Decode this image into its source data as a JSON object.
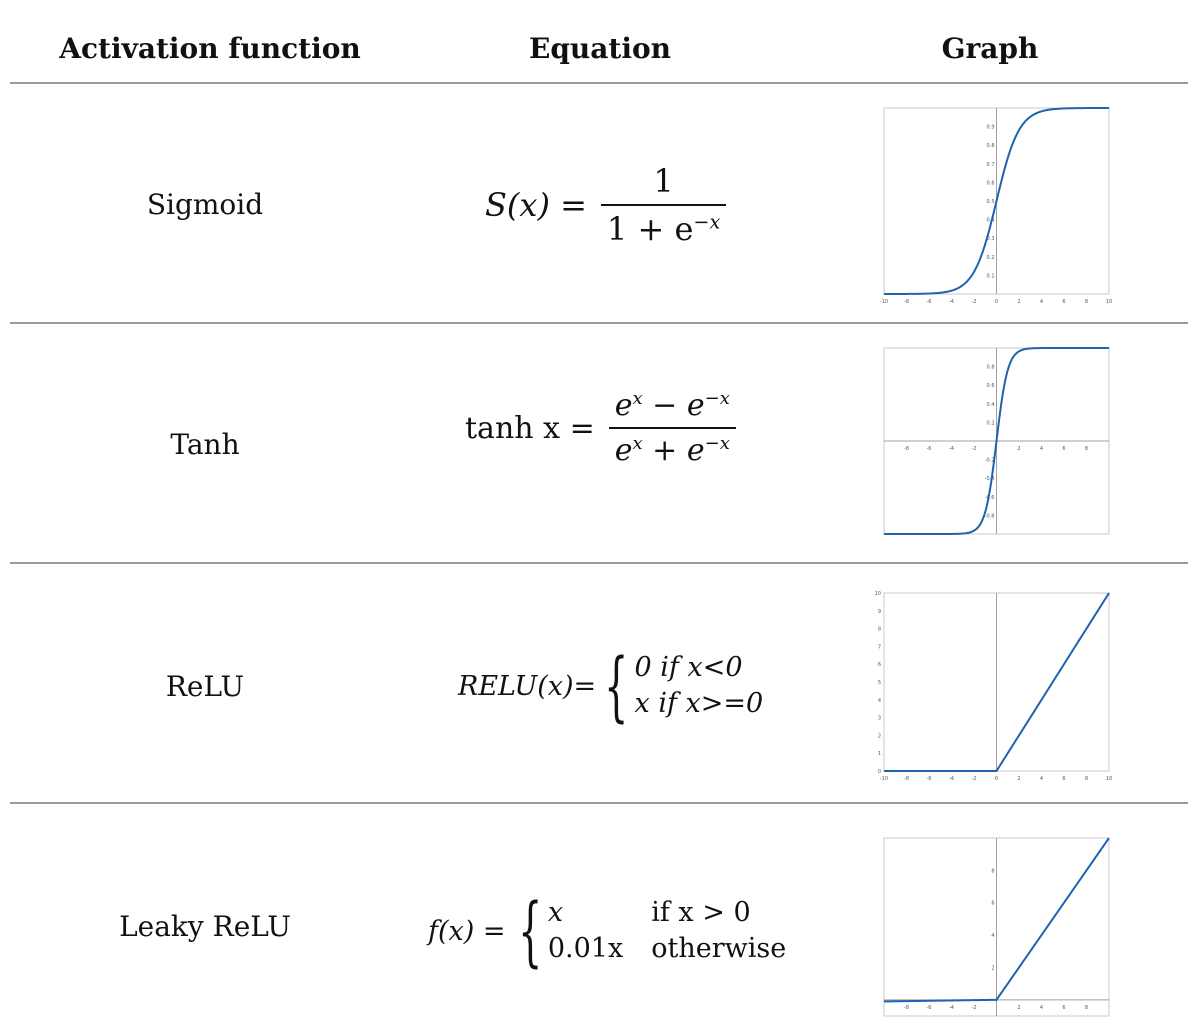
{
  "headers": {
    "activation_function": "Activation function",
    "equation": "Equation",
    "graph": "Graph"
  },
  "rows": [
    {
      "name": "Sigmoid"
    },
    {
      "name": "Tanh"
    },
    {
      "name": "ReLU"
    },
    {
      "name": "Leaky ReLU"
    }
  ],
  "equations": {
    "sigmoid": {
      "lhs": "S(x) =",
      "num": "1",
      "den_base": "1 + e",
      "den_exp": "−x"
    },
    "tanh": {
      "lhs": "tanh x =",
      "num_a": "e",
      "num_a_exp": "x",
      "num_op": " − e",
      "num_b_exp": "−x",
      "den_a": "e",
      "den_a_exp": "x",
      "den_op": " + e",
      "den_b_exp": "−x"
    },
    "relu": {
      "lhs": "RELU(x)=",
      "case1": "0 if x<0",
      "case2": "x if x>=0"
    },
    "leaky": {
      "lhs": "f(x) =",
      "case1_val": "x",
      "case1_cond": "if x > 0",
      "case2_val": "0.01x",
      "case2_cond": "otherwise"
    }
  },
  "chart_data": [
    {
      "type": "line",
      "series": [
        {
          "function": "sigmoid"
        }
      ],
      "xlim": [
        -10,
        10
      ],
      "ylim": [
        0,
        1
      ],
      "xticks": [
        -10,
        -8,
        -6,
        -4,
        -2,
        0,
        2,
        4,
        6,
        8,
        10
      ],
      "yticks": [
        0.1,
        0.2,
        0.3,
        0.4,
        0.5,
        0.6,
        0.7,
        0.8,
        0.9
      ],
      "x_tick_labels": [
        "-10",
        "-8",
        "-6",
        "-4",
        "-2",
        "0",
        "2",
        "4",
        "6",
        "8",
        "10"
      ],
      "y_tick_labels": [
        "0.1",
        "0.2",
        "0.3",
        "0.4",
        "0.5",
        "0.6",
        "0.7",
        "0.8",
        "0.9"
      ],
      "color": "#1f63b0"
    },
    {
      "type": "line",
      "series": [
        {
          "function": "tanh"
        }
      ],
      "xlim": [
        -10,
        10
      ],
      "ylim": [
        -1,
        1
      ],
      "xticks": [
        -8,
        -6,
        -4,
        -2,
        2,
        4,
        6,
        8
      ],
      "yticks": [
        -0.8,
        -0.6,
        -0.4,
        -0.2,
        0.2,
        0.4,
        0.6,
        0.8
      ],
      "x_tick_labels": [
        "-8",
        "-6",
        "-4",
        "-2",
        "2",
        "4",
        "6",
        "8"
      ],
      "y_tick_labels": [
        "-0.8",
        "-0.6",
        "-0.4",
        "-0.2",
        "0.2",
        "0.4",
        "0.6",
        "0.8"
      ],
      "color": "#1f63b0"
    },
    {
      "type": "line",
      "series": [
        {
          "function": "relu",
          "x": [
            -10,
            0,
            10
          ],
          "y": [
            0,
            0,
            10
          ]
        }
      ],
      "xlim": [
        -10,
        10
      ],
      "ylim": [
        0,
        10
      ],
      "xticks": [
        -10,
        -8,
        -6,
        -4,
        -2,
        0,
        2,
        4,
        6,
        8,
        10
      ],
      "yticks": [
        0,
        1,
        2,
        3,
        4,
        5,
        6,
        7,
        8,
        9,
        10
      ],
      "x_tick_labels": [
        "-10",
        "-8",
        "-6",
        "-4",
        "-2",
        "0",
        "2",
        "4",
        "6",
        "8",
        "10"
      ],
      "y_tick_labels": [
        "0",
        "1",
        "2",
        "3",
        "4",
        "5",
        "6",
        "7",
        "8",
        "9",
        "10"
      ],
      "color": "#1f63b0"
    },
    {
      "type": "line",
      "series": [
        {
          "function": "leaky_relu",
          "x": [
            -10,
            0,
            10
          ],
          "y": [
            -0.1,
            0,
            10
          ]
        }
      ],
      "xlim": [
        -10,
        10
      ],
      "ylim": [
        -1,
        10
      ],
      "xticks": [
        -8,
        -6,
        -4,
        -2,
        2,
        4,
        6,
        8
      ],
      "yticks": [
        2,
        4,
        6,
        8
      ],
      "x_tick_labels": [
        "-8",
        "-6",
        "-4",
        "-2",
        "2",
        "4",
        "6",
        "8"
      ],
      "y_tick_labels": [
        "2",
        "4",
        "6",
        "8"
      ],
      "color": "#1f63b0"
    }
  ]
}
